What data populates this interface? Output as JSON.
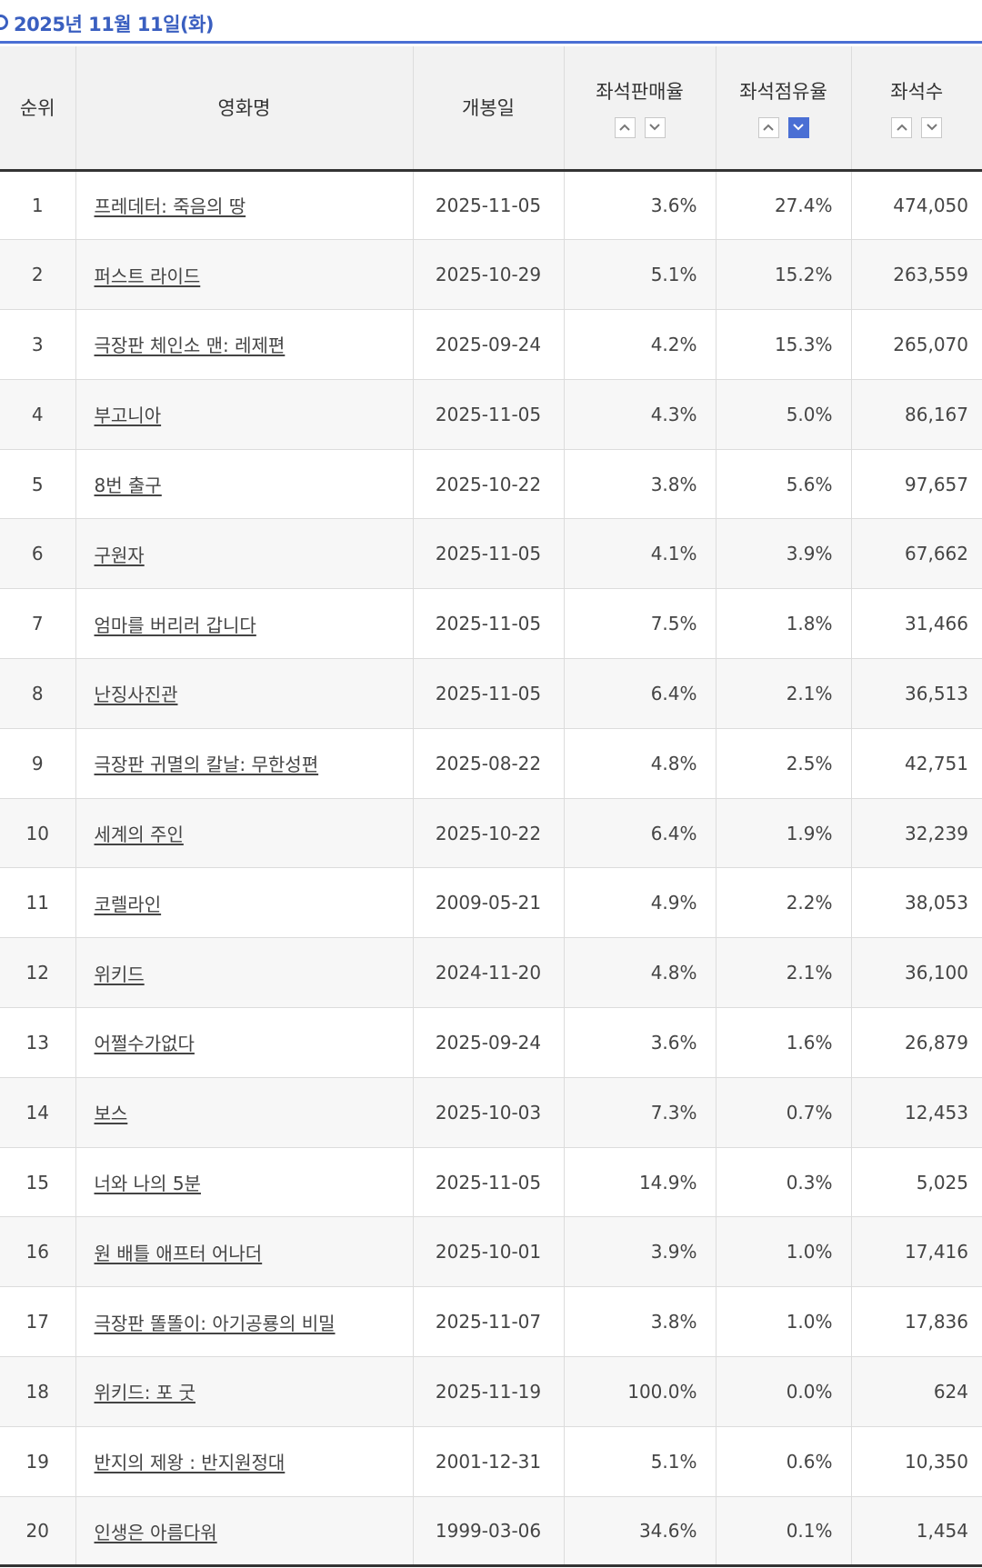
{
  "date_label": "2025년 11월 11일(화)",
  "colors": {
    "accent": "#4a6fd4",
    "header_bg": "#f2f2f2",
    "border_dark": "#333333"
  },
  "icons": {
    "bullet": "circle-bullet-icon",
    "sort_up": "chevron-up-icon",
    "sort_down": "chevron-down-icon"
  },
  "table": {
    "headers": {
      "rank": "순위",
      "title": "영화명",
      "open_date": "개봉일",
      "seat_sales_rate": "좌석판매율",
      "seat_share": "좌석점유율",
      "seats": "좌석수"
    },
    "active_sort": {
      "column": "seat_share",
      "direction": "desc"
    },
    "rows": [
      {
        "rank": "1",
        "title": "프레데터: 죽음의 땅",
        "open_date": "2025-11-05",
        "sales_rate": "3.6%",
        "share": "27.4%",
        "seats": "474,050"
      },
      {
        "rank": "2",
        "title": "퍼스트 라이드",
        "open_date": "2025-10-29",
        "sales_rate": "5.1%",
        "share": "15.2%",
        "seats": "263,559"
      },
      {
        "rank": "3",
        "title": "극장판 체인소 맨: 레제편",
        "open_date": "2025-09-24",
        "sales_rate": "4.2%",
        "share": "15.3%",
        "seats": "265,070"
      },
      {
        "rank": "4",
        "title": "부고니아",
        "open_date": "2025-11-05",
        "sales_rate": "4.3%",
        "share": "5.0%",
        "seats": "86,167"
      },
      {
        "rank": "5",
        "title": "8번 출구",
        "open_date": "2025-10-22",
        "sales_rate": "3.8%",
        "share": "5.6%",
        "seats": "97,657"
      },
      {
        "rank": "6",
        "title": "구원자",
        "open_date": "2025-11-05",
        "sales_rate": "4.1%",
        "share": "3.9%",
        "seats": "67,662"
      },
      {
        "rank": "7",
        "title": "엄마를 버리러 갑니다",
        "open_date": "2025-11-05",
        "sales_rate": "7.5%",
        "share": "1.8%",
        "seats": "31,466"
      },
      {
        "rank": "8",
        "title": "난징사진관",
        "open_date": "2025-11-05",
        "sales_rate": "6.4%",
        "share": "2.1%",
        "seats": "36,513"
      },
      {
        "rank": "9",
        "title": "극장판 귀멸의 칼날: 무한성편",
        "open_date": "2025-08-22",
        "sales_rate": "4.8%",
        "share": "2.5%",
        "seats": "42,751"
      },
      {
        "rank": "10",
        "title": "세계의 주인",
        "open_date": "2025-10-22",
        "sales_rate": "6.4%",
        "share": "1.9%",
        "seats": "32,239"
      },
      {
        "rank": "11",
        "title": "코렐라인",
        "open_date": "2009-05-21",
        "sales_rate": "4.9%",
        "share": "2.2%",
        "seats": "38,053"
      },
      {
        "rank": "12",
        "title": "위키드",
        "open_date": "2024-11-20",
        "sales_rate": "4.8%",
        "share": "2.1%",
        "seats": "36,100"
      },
      {
        "rank": "13",
        "title": "어쩔수가없다",
        "open_date": "2025-09-24",
        "sales_rate": "3.6%",
        "share": "1.6%",
        "seats": "26,879"
      },
      {
        "rank": "14",
        "title": "보스",
        "open_date": "2025-10-03",
        "sales_rate": "7.3%",
        "share": "0.7%",
        "seats": "12,453"
      },
      {
        "rank": "15",
        "title": "너와 나의 5분",
        "open_date": "2025-11-05",
        "sales_rate": "14.9%",
        "share": "0.3%",
        "seats": "5,025"
      },
      {
        "rank": "16",
        "title": "원 배틀 애프터 어나더",
        "open_date": "2025-10-01",
        "sales_rate": "3.9%",
        "share": "1.0%",
        "seats": "17,416"
      },
      {
        "rank": "17",
        "title": "극장판 똘똘이: 아기공룡의 비밀",
        "open_date": "2025-11-07",
        "sales_rate": "3.8%",
        "share": "1.0%",
        "seats": "17,836"
      },
      {
        "rank": "18",
        "title": "위키드: 포 굿",
        "open_date": "2025-11-19",
        "sales_rate": "100.0%",
        "share": "0.0%",
        "seats": "624"
      },
      {
        "rank": "19",
        "title": "반지의 제왕 : 반지원정대",
        "open_date": "2001-12-31",
        "sales_rate": "5.1%",
        "share": "0.6%",
        "seats": "10,350"
      },
      {
        "rank": "20",
        "title": "인생은 아름다워",
        "open_date": "1999-03-06",
        "sales_rate": "34.6%",
        "share": "0.1%",
        "seats": "1,454"
      }
    ]
  }
}
